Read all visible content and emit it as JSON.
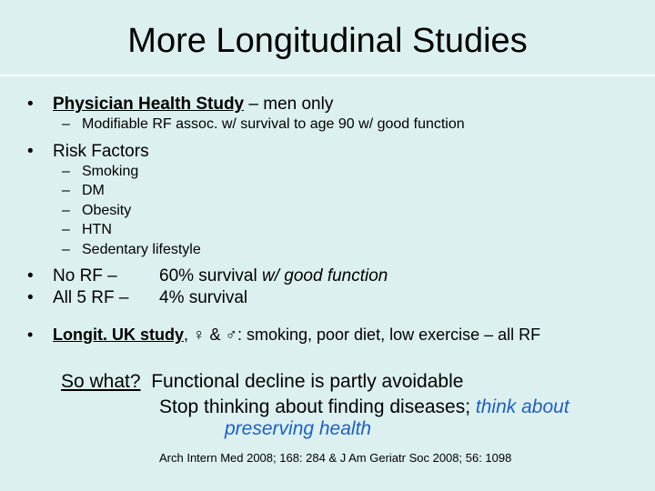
{
  "title": "More Longitudinal Studies",
  "bullets": [
    [
      "Physician Health Study",
      " – men only",
      "Modifiable RF assoc. w/ survival to age 90 w/ good function"
    ]
  ],
  "risk_factors": {
    "heading": "Risk Factors",
    "items": [
      "Smoking",
      "DM",
      "Obesity",
      "HTN",
      "Sedentary lifestyle"
    ]
  },
  "outcomes": [
    {
      "label": "No RF –",
      "result": "60% survival",
      "note": "w/ good function"
    },
    {
      "label": "All 5 RF –",
      "result": "4% survival"
    }
  ],
  "uk_study": [
    "Longit. UK study",
    ", ♀ & ♂:  smoking, poor diet, low exercise – all RF"
  ],
  "so_what": {
    "label": "So what?",
    "line1": "Functional decline is partly avoidable",
    "line2": "Stop thinking about finding diseases;",
    "emphasis1": "think about",
    "emphasis2": "preserving health"
  },
  "citation": "Arch Intern Med 2008; 168: 284 & J Am Geriatr Soc 2008; 56: 1098"
}
